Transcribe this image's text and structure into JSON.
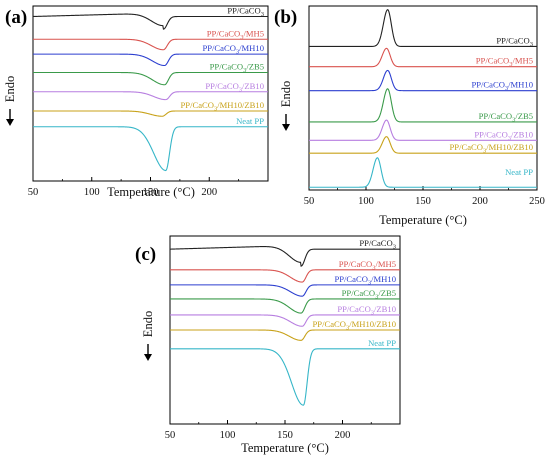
{
  "chart_data": [
    {
      "panel": "(a)",
      "type": "line",
      "xlabel": "Temperature (°C)",
      "ylabel": "Endo",
      "xlim": [
        50,
        250
      ],
      "xticks": [
        50,
        100,
        150,
        200
      ],
      "series": [
        {
          "name": "PP/CaCO3",
          "label_main": "PP/CaCO",
          "label_sub": "3",
          "label_tail": "",
          "color": "#222222",
          "baseline_level": 0.06,
          "peak_x": 161,
          "peak_depth": 0.072
        },
        {
          "name": "PP/CaCO3/MH5",
          "label_main": "PP/CaCO",
          "label_sub": "3",
          "label_tail": "/MH5",
          "color": "#d9534f",
          "baseline_level": 0.19,
          "peak_x": 161,
          "peak_depth": 0.06
        },
        {
          "name": "PP/CaCO3/MH10",
          "label_main": "PP/CaCO",
          "label_sub": "3",
          "label_tail": "/MH10",
          "color": "#2c3fcf",
          "baseline_level": 0.275,
          "peak_x": 162,
          "peak_depth": 0.065
        },
        {
          "name": "PP/CaCO3/ZB5",
          "label_main": "PP/CaCO",
          "label_sub": "3",
          "label_tail": "/ZB5",
          "color": "#3a9a4a",
          "baseline_level": 0.38,
          "peak_x": 162,
          "peak_depth": 0.07
        },
        {
          "name": "PP/CaCO3/ZB10",
          "label_main": "PP/CaCO",
          "label_sub": "3",
          "label_tail": "/ZB10",
          "color": "#b77ee0",
          "baseline_level": 0.49,
          "peak_x": 163,
          "peak_depth": 0.045
        },
        {
          "name": "PP/CaCO3/MH10/ZB10",
          "label_main": "PP/CaCO",
          "label_sub": "3",
          "label_tail": "/MH10/ZB10",
          "color": "#c8a21a",
          "baseline_level": 0.6,
          "peak_x": 160,
          "peak_depth": 0.03
        },
        {
          "name": "Neat PP",
          "label_main": "Neat PP",
          "label_sub": "",
          "label_tail": "",
          "color": "#36b6c8",
          "baseline_level": 0.69,
          "peak_x": 163,
          "peak_depth": 0.25
        }
      ]
    },
    {
      "panel": "(b)",
      "type": "line",
      "xlabel": "Temperature (°C)",
      "ylabel": "Endo",
      "xlim": [
        50,
        250
      ],
      "xticks": [
        50,
        100,
        150,
        200,
        250
      ],
      "series": [
        {
          "name": "PP/CaCO3",
          "label_main": "PP/CaCO",
          "label_sub": "3",
          "label_tail": "",
          "color": "#222222",
          "baseline_level": 0.22,
          "peak_x": 119,
          "peak_depth": 0.2
        },
        {
          "name": "PP/CaCO3/MH5",
          "label_main": "PP/CaCO",
          "label_sub": "3",
          "label_tail": "/MH5",
          "color": "#d9534f",
          "baseline_level": 0.33,
          "peak_x": 118,
          "peak_depth": 0.1
        },
        {
          "name": "PP/CaCO3/MH10",
          "label_main": "PP/CaCO",
          "label_sub": "3",
          "label_tail": "/MH10",
          "color": "#2c3fcf",
          "baseline_level": 0.46,
          "peak_x": 119,
          "peak_depth": 0.11
        },
        {
          "name": "PP/CaCO3/ZB5",
          "label_main": "PP/CaCO",
          "label_sub": "3",
          "label_tail": "/ZB5",
          "color": "#3a9a4a",
          "baseline_level": 0.63,
          "peak_x": 119,
          "peak_depth": 0.18
        },
        {
          "name": "PP/CaCO3/ZB10",
          "label_main": "PP/CaCO",
          "label_sub": "3",
          "label_tail": "/ZB10",
          "color": "#b77ee0",
          "baseline_level": 0.73,
          "peak_x": 118,
          "peak_depth": 0.11
        },
        {
          "name": "PP/CaCO3/MH10/ZB10",
          "label_main": "PP/CaCO",
          "label_sub": "3",
          "label_tail": "/MH10/ZB10",
          "color": "#c8a21a",
          "baseline_level": 0.8,
          "peak_x": 118,
          "peak_depth": 0.09
        },
        {
          "name": "Neat PP",
          "label_main": "Neat PP",
          "label_sub": "",
          "label_tail": "",
          "color": "#36b6c8",
          "baseline_level": 0.985,
          "peak_x": 110,
          "peak_depth": 0.16
        }
      ]
    },
    {
      "panel": "(c)",
      "type": "line",
      "xlabel": "Temperature (°C)",
      "ylabel": "Endo",
      "xlim": [
        50,
        250
      ],
      "xticks": [
        50,
        100,
        150,
        200
      ],
      "series": [
        {
          "name": "PP/CaCO3",
          "label_main": "PP/CaCO",
          "label_sub": "3",
          "label_tail": "",
          "color": "#222222",
          "baseline_level": 0.07,
          "peak_x": 164,
          "peak_depth": 0.09
        },
        {
          "name": "PP/CaCO3/MH5",
          "label_main": "PP/CaCO",
          "label_sub": "3",
          "label_tail": "/MH5",
          "color": "#d9534f",
          "baseline_level": 0.18,
          "peak_x": 165,
          "peak_depth": 0.065
        },
        {
          "name": "PP/CaCO3/MH10",
          "label_main": "PP/CaCO",
          "label_sub": "3",
          "label_tail": "/MH10",
          "color": "#2c3fcf",
          "baseline_level": 0.26,
          "peak_x": 165,
          "peak_depth": 0.06
        },
        {
          "name": "PP/CaCO3/ZB5",
          "label_main": "PP/CaCO",
          "label_sub": "3",
          "label_tail": "/ZB5",
          "color": "#3a9a4a",
          "baseline_level": 0.335,
          "peak_x": 164,
          "peak_depth": 0.075
        },
        {
          "name": "PP/CaCO3/ZB10",
          "label_main": "PP/CaCO",
          "label_sub": "3",
          "label_tail": "/ZB10",
          "color": "#b77ee0",
          "baseline_level": 0.42,
          "peak_x": 165,
          "peak_depth": 0.06
        },
        {
          "name": "PP/CaCO3/MH10/ZB10",
          "label_main": "PP/CaCO",
          "label_sub": "3",
          "label_tail": "/MH10/ZB10",
          "color": "#c8a21a",
          "baseline_level": 0.5,
          "peak_x": 164,
          "peak_depth": 0.055
        },
        {
          "name": "Neat PP",
          "label_main": "Neat PP",
          "label_sub": "",
          "label_tail": "",
          "color": "#36b6c8",
          "baseline_level": 0.6,
          "peak_x": 166,
          "peak_depth": 0.3
        }
      ]
    }
  ]
}
